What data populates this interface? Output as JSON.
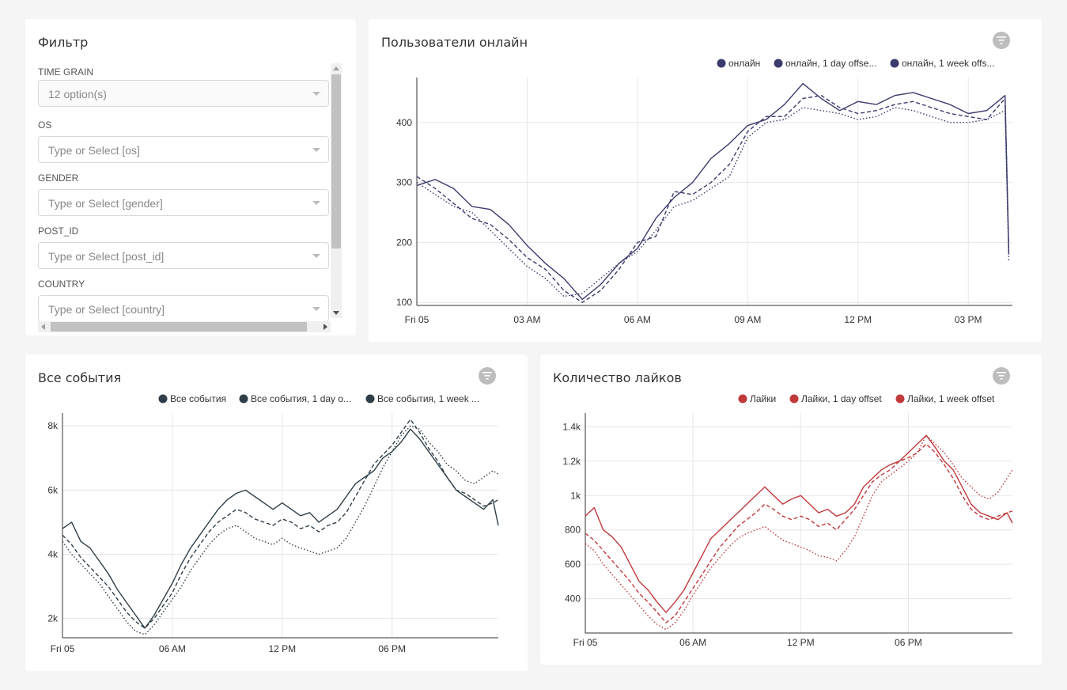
{
  "filter": {
    "title": "Фильтр",
    "fields": [
      {
        "label": "TIME GRAIN",
        "value": "12 option(s)",
        "disabled": true
      },
      {
        "label": "OS",
        "value": "Type or Select [os]"
      },
      {
        "label": "GENDER",
        "value": "Type or Select [gender]"
      },
      {
        "label": "POST_ID",
        "value": "Type or Select [post_id]"
      },
      {
        "label": "COUNTRY",
        "value": "Type or Select [country]"
      }
    ]
  },
  "chart_data": [
    {
      "id": "online",
      "type": "line",
      "title": "Пользователи онлайн",
      "color": "#3b3b6d",
      "legend": [
        "онлайн",
        "онлайн, 1 day offse...",
        "онлайн, 1 week offs..."
      ],
      "xlim": [
        0,
        16.2
      ],
      "x_ticks": [
        {
          "x": 0,
          "label": "Fri 05"
        },
        {
          "x": 3,
          "label": "03 AM"
        },
        {
          "x": 6,
          "label": "06 AM"
        },
        {
          "x": 9,
          "label": "09 AM"
        },
        {
          "x": 12,
          "label": "12 PM"
        },
        {
          "x": 15,
          "label": "03 PM"
        }
      ],
      "ylim": [
        95,
        475
      ],
      "y_ticks": [
        100,
        200,
        300,
        400
      ],
      "y_tick_labels": [
        "100",
        "200",
        "300",
        "400"
      ],
      "series": [
        {
          "style": "solid",
          "x": [
            0,
            0.5,
            1,
            1.5,
            2,
            2.5,
            3,
            3.5,
            4,
            4.5,
            5,
            5.5,
            6,
            6.5,
            7,
            7.5,
            8,
            8.5,
            9,
            9.5,
            10,
            10.5,
            11,
            11.5,
            12,
            12.5,
            13,
            13.5,
            14,
            14.5,
            15,
            15.5,
            16,
            16.1
          ],
          "y": [
            295,
            305,
            290,
            260,
            255,
            230,
            195,
            165,
            140,
            105,
            130,
            165,
            190,
            240,
            275,
            300,
            340,
            365,
            395,
            405,
            430,
            465,
            440,
            420,
            435,
            430,
            445,
            450,
            440,
            430,
            415,
            420,
            445,
            185
          ]
        },
        {
          "style": "dashed",
          "x": [
            0,
            0.5,
            1,
            1.5,
            2,
            2.5,
            3,
            3.5,
            4,
            4.5,
            5,
            5.5,
            6,
            6.5,
            7,
            7.5,
            8,
            8.5,
            9,
            9.5,
            10,
            10.5,
            11,
            11.5,
            12,
            12.5,
            13,
            13.5,
            14,
            14.5,
            15,
            15.5,
            16,
            16.1
          ],
          "y": [
            310,
            290,
            265,
            240,
            230,
            205,
            175,
            155,
            120,
            100,
            120,
            155,
            200,
            210,
            285,
            280,
            300,
            330,
            385,
            410,
            410,
            440,
            445,
            425,
            415,
            420,
            430,
            435,
            425,
            415,
            410,
            405,
            440,
            180
          ]
        },
        {
          "style": "dotted",
          "x": [
            0,
            0.5,
            1,
            1.5,
            2,
            2.5,
            3,
            3.5,
            4,
            4.5,
            5,
            5.5,
            6,
            6.5,
            7,
            7.5,
            8,
            8.5,
            9,
            9.5,
            10,
            10.5,
            11,
            11.5,
            12,
            12.5,
            13,
            13.5,
            14,
            14.5,
            15,
            15.5,
            16,
            16.1
          ],
          "y": [
            300,
            280,
            260,
            250,
            220,
            190,
            160,
            140,
            110,
            115,
            140,
            165,
            185,
            220,
            260,
            270,
            290,
            310,
            375,
            400,
            405,
            425,
            420,
            415,
            405,
            410,
            425,
            420,
            410,
            400,
            400,
            405,
            420,
            170
          ]
        }
      ]
    },
    {
      "id": "events",
      "type": "line",
      "title": "Все события",
      "color": "#2f3e48",
      "legend": [
        "Все события",
        "Все события, 1 day o...",
        "Все события, 1 week ..."
      ],
      "xlim": [
        0,
        23.8
      ],
      "x_ticks": [
        {
          "x": 0,
          "label": "Fri 05"
        },
        {
          "x": 6,
          "label": "06 AM"
        },
        {
          "x": 12,
          "label": "12 PM"
        },
        {
          "x": 18,
          "label": "06 PM"
        }
      ],
      "ylim": [
        1400,
        8400
      ],
      "y_ticks": [
        2000,
        4000,
        6000,
        8000
      ],
      "y_tick_labels": [
        "2k",
        "4k",
        "6k",
        "8k"
      ],
      "series": [
        {
          "style": "solid",
          "x": [
            0,
            0.5,
            1,
            1.5,
            2,
            2.5,
            3,
            3.5,
            4,
            4.5,
            5,
            5.5,
            6,
            6.5,
            7,
            7.5,
            8,
            8.5,
            9,
            9.5,
            10,
            10.5,
            11,
            11.5,
            12,
            12.5,
            13,
            13.5,
            14,
            14.5,
            15,
            15.5,
            16,
            16.5,
            17,
            17.5,
            18,
            18.5,
            19,
            19.5,
            20,
            20.5,
            21,
            21.5,
            22,
            22.5,
            23,
            23.5,
            23.8
          ],
          "y": [
            4800,
            5000,
            4400,
            4200,
            3800,
            3400,
            2900,
            2500,
            2100,
            1700,
            2100,
            2600,
            3100,
            3700,
            4200,
            4600,
            5000,
            5400,
            5700,
            5900,
            6000,
            5800,
            5600,
            5400,
            5600,
            5400,
            5200,
            5300,
            5000,
            5200,
            5400,
            5800,
            6200,
            6400,
            6600,
            7000,
            7200,
            7500,
            7900,
            7600,
            7200,
            6800,
            6400,
            6000,
            5800,
            5600,
            5400,
            5700,
            4900
          ]
        },
        {
          "style": "dashed",
          "x": [
            0,
            0.5,
            1,
            1.5,
            2,
            2.5,
            3,
            3.5,
            4,
            4.5,
            5,
            5.5,
            6,
            6.5,
            7,
            7.5,
            8,
            8.5,
            9,
            9.5,
            10,
            10.5,
            11,
            11.5,
            12,
            12.5,
            13,
            13.5,
            14,
            14.5,
            15,
            15.5,
            16,
            16.5,
            17,
            17.5,
            18,
            18.5,
            19,
            19.5,
            20,
            20.5,
            21,
            21.5,
            22,
            22.5,
            23,
            23.5,
            23.8
          ],
          "y": [
            4600,
            4300,
            3900,
            3600,
            3300,
            3000,
            2600,
            2200,
            1900,
            1700,
            2000,
            2400,
            2800,
            3400,
            3900,
            4300,
            4700,
            5000,
            5200,
            5400,
            5300,
            5100,
            5000,
            4900,
            5100,
            5000,
            4800,
            4900,
            4700,
            4900,
            5000,
            5300,
            5800,
            6300,
            6800,
            7100,
            7400,
            7800,
            8200,
            7800,
            7300,
            6900,
            6400,
            6000,
            5900,
            5700,
            5500,
            5600,
            5700
          ]
        },
        {
          "style": "dotted",
          "x": [
            0,
            0.5,
            1,
            1.5,
            2,
            2.5,
            3,
            3.5,
            4,
            4.5,
            5,
            5.5,
            6,
            6.5,
            7,
            7.5,
            8,
            8.5,
            9,
            9.5,
            10,
            10.5,
            11,
            11.5,
            12,
            12.5,
            13,
            13.5,
            14,
            14.5,
            15,
            15.5,
            16,
            16.5,
            17,
            17.5,
            18,
            18.5,
            19,
            19.5,
            20,
            20.5,
            21,
            21.5,
            22,
            22.5,
            23,
            23.5,
            23.8
          ],
          "y": [
            4400,
            4000,
            3700,
            3400,
            3100,
            2700,
            2300,
            1900,
            1600,
            1500,
            1800,
            2200,
            2600,
            3000,
            3500,
            3900,
            4300,
            4600,
            4800,
            4900,
            4700,
            4500,
            4400,
            4300,
            4500,
            4300,
            4200,
            4100,
            4000,
            4100,
            4200,
            4500,
            5000,
            5500,
            6100,
            6700,
            7200,
            7700,
            8000,
            7900,
            7500,
            7200,
            6800,
            6600,
            6300,
            6200,
            6400,
            6600,
            6500
          ]
        }
      ]
    },
    {
      "id": "likes",
      "type": "line",
      "title": "Количество лайков",
      "color": "#c0393b",
      "legend": [
        "Лайки",
        "Лайки, 1 day offset",
        "Лайки, 1 week offset"
      ],
      "xlim": [
        0,
        23.8
      ],
      "x_ticks": [
        {
          "x": 0,
          "label": "Fri 05"
        },
        {
          "x": 6,
          "label": "06 AM"
        },
        {
          "x": 12,
          "label": "12 PM"
        },
        {
          "x": 18,
          "label": "06 PM"
        }
      ],
      "ylim": [
        200,
        1480
      ],
      "y_ticks": [
        400,
        600,
        800,
        1000,
        1200,
        1400
      ],
      "y_tick_labels": [
        "400",
        "600",
        "800",
        "1k",
        "1.2k",
        "1.4k"
      ],
      "series": [
        {
          "style": "solid",
          "x": [
            0,
            0.5,
            1,
            1.5,
            2,
            2.5,
            3,
            3.5,
            4,
            4.5,
            5,
            5.5,
            6,
            6.5,
            7,
            7.5,
            8,
            8.5,
            9,
            9.5,
            10,
            10.5,
            11,
            11.5,
            12,
            12.5,
            13,
            13.5,
            14,
            14.5,
            15,
            15.5,
            16,
            16.5,
            17,
            17.5,
            18,
            18.5,
            19,
            19.5,
            20,
            20.5,
            21,
            21.5,
            22,
            22.5,
            23,
            23.5,
            23.8
          ],
          "y": [
            880,
            930,
            800,
            760,
            700,
            600,
            500,
            450,
            380,
            320,
            380,
            450,
            550,
            650,
            750,
            800,
            850,
            900,
            950,
            1000,
            1050,
            1000,
            950,
            980,
            1000,
            950,
            900,
            920,
            880,
            900,
            950,
            1050,
            1100,
            1150,
            1180,
            1200,
            1250,
            1300,
            1350,
            1280,
            1200,
            1150,
            1050,
            950,
            900,
            880,
            860,
            900,
            840
          ]
        },
        {
          "style": "dashed",
          "x": [
            0,
            0.5,
            1,
            1.5,
            2,
            2.5,
            3,
            3.5,
            4,
            4.5,
            5,
            5.5,
            6,
            6.5,
            7,
            7.5,
            8,
            8.5,
            9,
            9.5,
            10,
            10.5,
            11,
            11.5,
            12,
            12.5,
            13,
            13.5,
            14,
            14.5,
            15,
            15.5,
            16,
            16.5,
            17,
            17.5,
            18,
            18.5,
            19,
            19.5,
            20,
            20.5,
            21,
            21.5,
            22,
            22.5,
            23,
            23.5,
            23.8
          ],
          "y": [
            780,
            740,
            680,
            620,
            560,
            500,
            430,
            380,
            320,
            260,
            300,
            380,
            460,
            540,
            620,
            700,
            760,
            820,
            860,
            900,
            950,
            920,
            880,
            860,
            880,
            860,
            820,
            840,
            800,
            860,
            920,
            1000,
            1080,
            1120,
            1150,
            1200,
            1220,
            1250,
            1300,
            1250,
            1180,
            1100,
            1000,
            920,
            880,
            860,
            880,
            900,
            910
          ]
        },
        {
          "style": "dotted",
          "x": [
            0,
            0.5,
            1,
            1.5,
            2,
            2.5,
            3,
            3.5,
            4,
            4.5,
            5,
            5.5,
            6,
            6.5,
            7,
            7.5,
            8,
            8.5,
            9,
            9.5,
            10,
            10.5,
            11,
            11.5,
            12,
            12.5,
            13,
            13.5,
            14,
            14.5,
            15,
            15.5,
            16,
            16.5,
            17,
            17.5,
            18,
            18.5,
            19,
            19.5,
            20,
            20.5,
            21,
            21.5,
            22,
            22.5,
            23,
            23.5,
            23.8
          ],
          "y": [
            720,
            680,
            600,
            540,
            480,
            420,
            360,
            300,
            250,
            220,
            260,
            330,
            420,
            500,
            580,
            640,
            700,
            750,
            780,
            800,
            820,
            780,
            740,
            720,
            700,
            680,
            650,
            640,
            620,
            680,
            760,
            880,
            1000,
            1080,
            1120,
            1160,
            1200,
            1250,
            1350,
            1300,
            1250,
            1180,
            1100,
            1050,
            1000,
            980,
            1020,
            1100,
            1150
          ]
        }
      ]
    }
  ]
}
